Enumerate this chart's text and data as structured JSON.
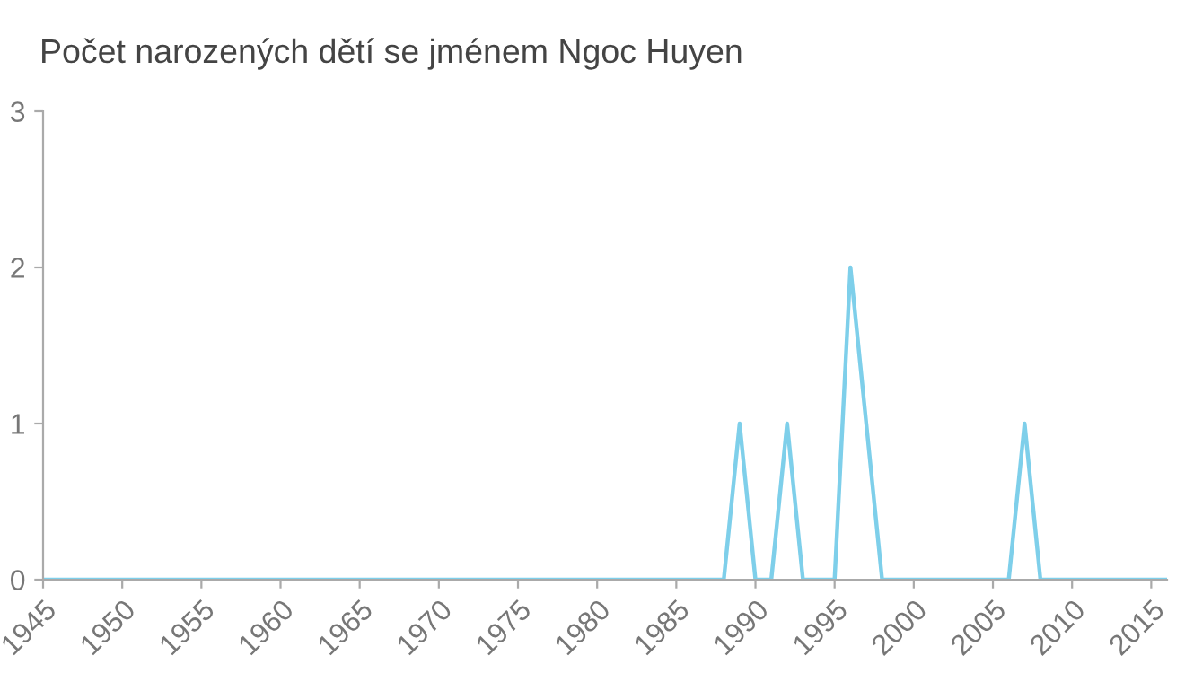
{
  "chart_data": {
    "type": "line",
    "title": "Počet narozených dětí se jménem Ngoc Huyen",
    "x": [
      1945,
      1946,
      1947,
      1948,
      1949,
      1950,
      1951,
      1952,
      1953,
      1954,
      1955,
      1956,
      1957,
      1958,
      1959,
      1960,
      1961,
      1962,
      1963,
      1964,
      1965,
      1966,
      1967,
      1968,
      1969,
      1970,
      1971,
      1972,
      1973,
      1974,
      1975,
      1976,
      1977,
      1978,
      1979,
      1980,
      1981,
      1982,
      1983,
      1984,
      1985,
      1986,
      1987,
      1988,
      1989,
      1990,
      1991,
      1992,
      1993,
      1994,
      1995,
      1996,
      1997,
      1998,
      1999,
      2000,
      2001,
      2002,
      2003,
      2004,
      2005,
      2006,
      2007,
      2008,
      2009,
      2010,
      2011,
      2012,
      2013,
      2014,
      2015,
      2016
    ],
    "series": [
      {
        "color": "#7ecfea",
        "values": [
          0,
          0,
          0,
          0,
          0,
          0,
          0,
          0,
          0,
          0,
          0,
          0,
          0,
          0,
          0,
          0,
          0,
          0,
          0,
          0,
          0,
          0,
          0,
          0,
          0,
          0,
          0,
          0,
          0,
          0,
          0,
          0,
          0,
          0,
          0,
          0,
          0,
          0,
          0,
          0,
          0,
          0,
          0,
          0,
          1,
          0,
          0,
          1,
          0,
          0,
          0,
          2,
          1,
          0,
          0,
          0,
          0,
          0,
          0,
          0,
          0,
          0,
          1,
          0,
          0,
          0,
          0,
          0,
          0,
          0,
          0,
          0
        ]
      }
    ],
    "xlim": [
      1945,
      2016
    ],
    "xticks": [
      1945,
      1950,
      1955,
      1960,
      1965,
      1970,
      1975,
      1980,
      1985,
      1990,
      1995,
      2000,
      2005,
      2010,
      2015
    ],
    "ylim": [
      0,
      3
    ],
    "yticks": [
      0,
      1,
      2,
      3
    ],
    "grid": false,
    "legend": false,
    "marker": "none",
    "line_style": "solid"
  }
}
